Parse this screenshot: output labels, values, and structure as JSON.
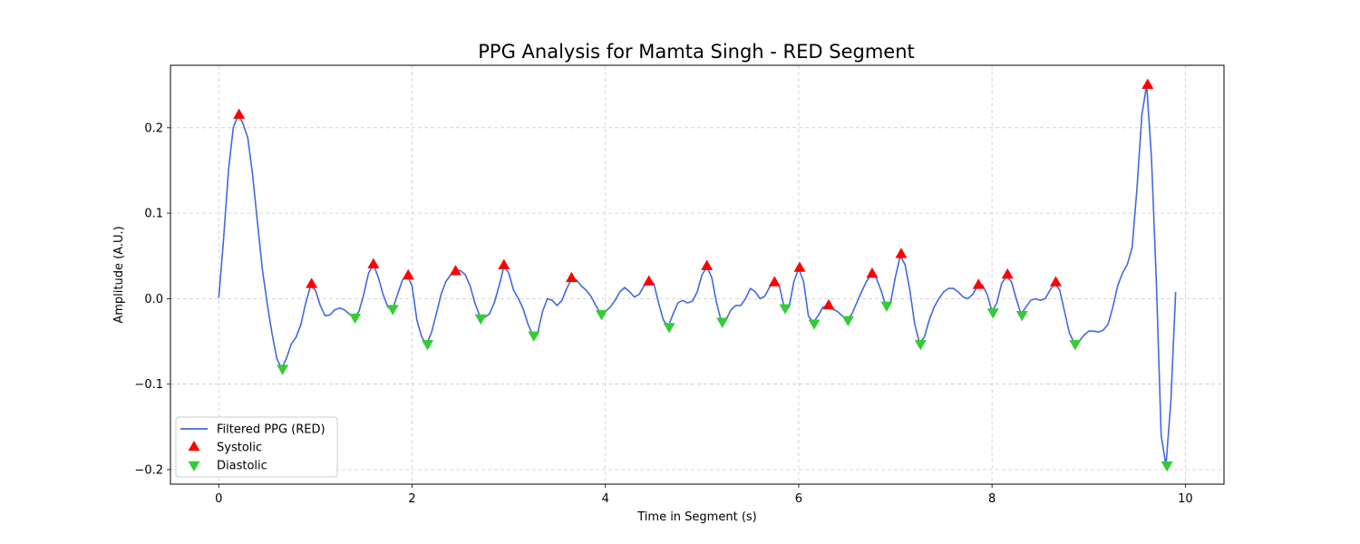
{
  "chart_data": {
    "type": "line",
    "title": "PPG Analysis for Mamta Singh - RED Segment",
    "xlabel": "Time in Segment (s)",
    "ylabel": "Amplitude (A.U.)",
    "xlim": [
      -0.5,
      10.4
    ],
    "ylim": [
      -0.217,
      0.273
    ],
    "xticks": [
      0,
      2,
      4,
      6,
      8,
      10
    ],
    "xtick_labels": [
      "0",
      "2",
      "4",
      "6",
      "8",
      "10"
    ],
    "yticks": [
      -0.2,
      -0.1,
      0.0,
      0.1,
      0.2
    ],
    "ytick_labels": [
      "−0.2",
      "−0.1",
      "0.0",
      "0.1",
      "0.2"
    ],
    "grid": true,
    "legend_position": "lower-left",
    "series": [
      {
        "name": "Filtered PPG (RED)",
        "kind": "line",
        "color": "#4169e1",
        "points": [
          [
            0.0,
            0.001
          ],
          [
            0.05,
            0.07
          ],
          [
            0.1,
            0.15
          ],
          [
            0.15,
            0.2
          ],
          [
            0.2,
            0.215
          ],
          [
            0.25,
            0.205
          ],
          [
            0.3,
            0.188
          ],
          [
            0.35,
            0.145
          ],
          [
            0.4,
            0.09
          ],
          [
            0.45,
            0.035
          ],
          [
            0.5,
            -0.005
          ],
          [
            0.55,
            -0.04
          ],
          [
            0.6,
            -0.07
          ],
          [
            0.65,
            -0.082
          ],
          [
            0.7,
            -0.07
          ],
          [
            0.75,
            -0.053
          ],
          [
            0.8,
            -0.045
          ],
          [
            0.85,
            -0.03
          ],
          [
            0.9,
            -0.005
          ],
          [
            0.95,
            0.015
          ],
          [
            1.0,
            0.01
          ],
          [
            1.05,
            -0.008
          ],
          [
            1.1,
            -0.02
          ],
          [
            1.15,
            -0.019
          ],
          [
            1.2,
            -0.013
          ],
          [
            1.25,
            -0.011
          ],
          [
            1.3,
            -0.013
          ],
          [
            1.35,
            -0.018
          ],
          [
            1.4,
            -0.022
          ],
          [
            1.45,
            -0.015
          ],
          [
            1.5,
            0.005
          ],
          [
            1.55,
            0.03
          ],
          [
            1.6,
            0.04
          ],
          [
            1.65,
            0.025
          ],
          [
            1.7,
            0.005
          ],
          [
            1.75,
            -0.01
          ],
          [
            1.8,
            -0.012
          ],
          [
            1.85,
            0.005
          ],
          [
            1.9,
            0.022
          ],
          [
            1.95,
            0.027
          ],
          [
            2.0,
            0.015
          ],
          [
            2.05,
            -0.025
          ],
          [
            2.1,
            -0.045
          ],
          [
            2.15,
            -0.053
          ],
          [
            2.2,
            -0.04
          ],
          [
            2.25,
            -0.018
          ],
          [
            2.3,
            0.005
          ],
          [
            2.35,
            0.02
          ],
          [
            2.4,
            0.028
          ],
          [
            2.45,
            0.032
          ],
          [
            2.5,
            0.033
          ],
          [
            2.55,
            0.028
          ],
          [
            2.6,
            0.015
          ],
          [
            2.65,
            -0.005
          ],
          [
            2.7,
            -0.02
          ],
          [
            2.75,
            -0.022
          ],
          [
            2.8,
            -0.018
          ],
          [
            2.85,
            -0.005
          ],
          [
            2.9,
            0.015
          ],
          [
            2.95,
            0.038
          ],
          [
            3.0,
            0.03
          ],
          [
            3.05,
            0.01
          ],
          [
            3.1,
            0.0
          ],
          [
            3.15,
            -0.012
          ],
          [
            3.2,
            -0.03
          ],
          [
            3.25,
            -0.043
          ],
          [
            3.3,
            -0.04
          ],
          [
            3.35,
            -0.015
          ],
          [
            3.4,
            0.0
          ],
          [
            3.45,
            -0.002
          ],
          [
            3.5,
            -0.008
          ],
          [
            3.55,
            -0.002
          ],
          [
            3.6,
            0.012
          ],
          [
            3.65,
            0.023
          ],
          [
            3.7,
            0.022
          ],
          [
            3.75,
            0.015
          ],
          [
            3.8,
            0.01
          ],
          [
            3.85,
            0.003
          ],
          [
            3.9,
            -0.008
          ],
          [
            3.95,
            -0.017
          ],
          [
            4.0,
            -0.015
          ],
          [
            4.05,
            -0.01
          ],
          [
            4.1,
            -0.002
          ],
          [
            4.15,
            0.008
          ],
          [
            4.2,
            0.013
          ],
          [
            4.25,
            0.008
          ],
          [
            4.3,
            0.002
          ],
          [
            4.35,
            0.005
          ],
          [
            4.4,
            0.015
          ],
          [
            4.45,
            0.019
          ],
          [
            4.5,
            0.018
          ],
          [
            4.55,
            -0.005
          ],
          [
            4.6,
            -0.025
          ],
          [
            4.65,
            -0.033
          ],
          [
            4.7,
            -0.018
          ],
          [
            4.75,
            -0.005
          ],
          [
            4.8,
            -0.002
          ],
          [
            4.85,
            -0.005
          ],
          [
            4.9,
            -0.003
          ],
          [
            4.95,
            0.008
          ],
          [
            5.0,
            0.028
          ],
          [
            5.05,
            0.037
          ],
          [
            5.1,
            0.025
          ],
          [
            5.15,
            -0.005
          ],
          [
            5.2,
            -0.027
          ],
          [
            5.25,
            -0.024
          ],
          [
            5.3,
            -0.013
          ],
          [
            5.35,
            -0.008
          ],
          [
            5.4,
            -0.008
          ],
          [
            5.45,
            0.0
          ],
          [
            5.5,
            0.012
          ],
          [
            5.55,
            0.008
          ],
          [
            5.6,
            0.0
          ],
          [
            5.65,
            0.003
          ],
          [
            5.7,
            0.014
          ],
          [
            5.75,
            0.018
          ],
          [
            5.8,
            0.015
          ],
          [
            5.85,
            -0.01
          ],
          [
            5.9,
            -0.01
          ],
          [
            5.95,
            0.02
          ],
          [
            6.0,
            0.035
          ],
          [
            6.05,
            0.02
          ],
          [
            6.1,
            -0.02
          ],
          [
            6.15,
            -0.028
          ],
          [
            6.2,
            -0.02
          ],
          [
            6.25,
            -0.01
          ],
          [
            6.3,
            -0.008
          ],
          [
            6.35,
            -0.012
          ],
          [
            6.4,
            -0.015
          ],
          [
            6.45,
            -0.02
          ],
          [
            6.5,
            -0.025
          ],
          [
            6.55,
            -0.018
          ],
          [
            6.6,
            -0.005
          ],
          [
            6.65,
            0.008
          ],
          [
            6.7,
            0.02
          ],
          [
            6.75,
            0.028
          ],
          [
            6.8,
            0.025
          ],
          [
            6.85,
            0.01
          ],
          [
            6.9,
            -0.008
          ],
          [
            6.95,
            -0.005
          ],
          [
            7.0,
            0.025
          ],
          [
            7.05,
            0.05
          ],
          [
            7.1,
            0.04
          ],
          [
            7.15,
            0.01
          ],
          [
            7.2,
            -0.03
          ],
          [
            7.25,
            -0.052
          ],
          [
            7.3,
            -0.045
          ],
          [
            7.35,
            -0.025
          ],
          [
            7.4,
            -0.01
          ],
          [
            7.45,
            0.0
          ],
          [
            7.5,
            0.008
          ],
          [
            7.55,
            0.012
          ],
          [
            7.6,
            0.012
          ],
          [
            7.65,
            0.008
          ],
          [
            7.7,
            0.002
          ],
          [
            7.75,
            0.0
          ],
          [
            7.8,
            0.005
          ],
          [
            7.85,
            0.015
          ],
          [
            7.9,
            0.016
          ],
          [
            7.95,
            0.005
          ],
          [
            8.0,
            -0.015
          ],
          [
            8.05,
            -0.005
          ],
          [
            8.1,
            0.018
          ],
          [
            8.15,
            0.026
          ],
          [
            8.2,
            0.02
          ],
          [
            8.25,
            0.0
          ],
          [
            8.3,
            -0.018
          ],
          [
            8.35,
            -0.01
          ],
          [
            8.4,
            -0.002
          ],
          [
            8.45,
            0.0
          ],
          [
            8.5,
            -0.002
          ],
          [
            8.55,
            0.0
          ],
          [
            8.6,
            0.01
          ],
          [
            8.65,
            0.018
          ],
          [
            8.7,
            0.01
          ],
          [
            8.75,
            -0.015
          ],
          [
            8.8,
            -0.04
          ],
          [
            8.85,
            -0.052
          ],
          [
            8.9,
            -0.05
          ],
          [
            8.95,
            -0.043
          ],
          [
            9.0,
            -0.038
          ],
          [
            9.05,
            -0.038
          ],
          [
            9.1,
            -0.039
          ],
          [
            9.15,
            -0.037
          ],
          [
            9.2,
            -0.03
          ],
          [
            9.25,
            -0.01
          ],
          [
            9.3,
            0.015
          ],
          [
            9.35,
            0.03
          ],
          [
            9.4,
            0.04
          ],
          [
            9.45,
            0.06
          ],
          [
            9.5,
            0.13
          ],
          [
            9.55,
            0.215
          ],
          [
            9.6,
            0.25
          ],
          [
            9.65,
            0.165
          ],
          [
            9.7,
            0.02
          ],
          [
            9.75,
            -0.16
          ],
          [
            9.8,
            -0.195
          ],
          [
            9.85,
            -0.12
          ],
          [
            9.9,
            0.008
          ]
        ]
      },
      {
        "name": "Systolic",
        "kind": "marker",
        "marker": "triangle-up",
        "color": "#ff0000",
        "x": [
          0.21,
          0.96,
          1.6,
          1.96,
          2.45,
          2.95,
          3.65,
          4.45,
          5.05,
          5.75,
          6.01,
          6.31,
          6.76,
          7.06,
          7.86,
          8.16,
          8.66,
          9.61
        ],
        "y": [
          0.215,
          0.017,
          0.04,
          0.027,
          0.032,
          0.039,
          0.024,
          0.02,
          0.038,
          0.019,
          0.036,
          -0.008,
          0.029,
          0.052,
          0.016,
          0.028,
          0.019,
          0.25
        ]
      },
      {
        "name": "Diastolic",
        "kind": "marker",
        "marker": "triangle-down",
        "color": "#33cc33",
        "x": [
          0.66,
          1.41,
          1.8,
          2.16,
          2.71,
          3.26,
          3.96,
          4.66,
          5.21,
          5.86,
          6.16,
          6.51,
          6.91,
          7.26,
          8.01,
          8.31,
          8.86,
          9.81
        ],
        "y": [
          -0.082,
          -0.022,
          -0.012,
          -0.053,
          -0.023,
          -0.043,
          -0.018,
          -0.033,
          -0.027,
          -0.011,
          -0.029,
          -0.025,
          -0.008,
          -0.053,
          -0.016,
          -0.019,
          -0.053,
          -0.195
        ]
      }
    ]
  }
}
